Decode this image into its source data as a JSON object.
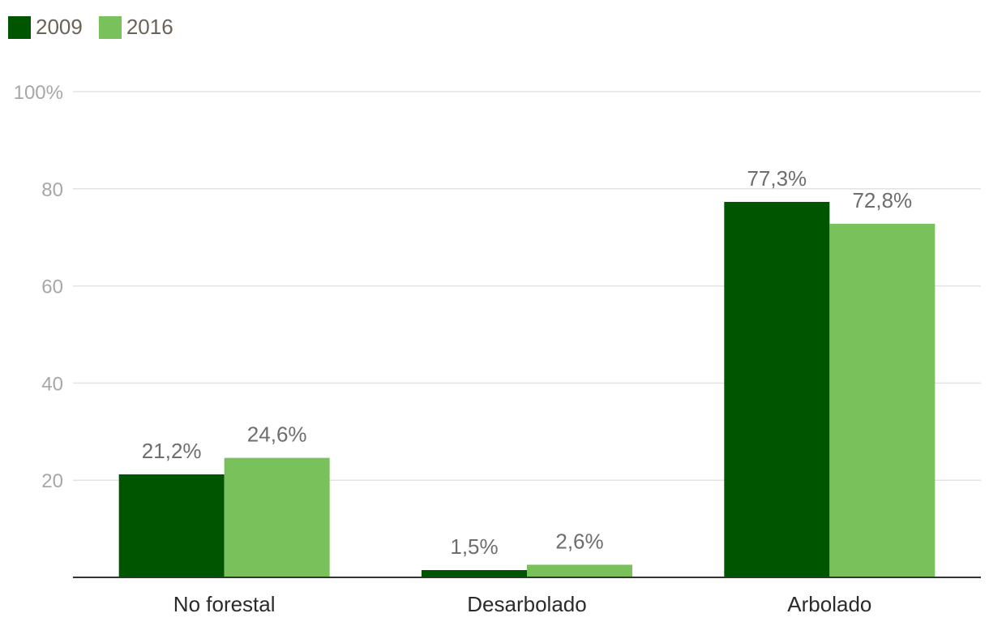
{
  "chart_data": {
    "type": "bar",
    "categories": [
      "No forestal",
      "Desarbolado",
      "Arbolado"
    ],
    "series": [
      {
        "name": "2009",
        "color": "#005500",
        "values": [
          21.2,
          1.5,
          77.3
        ],
        "labels": [
          "21,2%",
          "1,5%",
          "77,3%"
        ]
      },
      {
        "name": "2016",
        "color": "#79c15a",
        "values": [
          24.6,
          2.6,
          72.8
        ],
        "labels": [
          "24,6%",
          "2,6%",
          "72,8%"
        ]
      }
    ],
    "yticks": [
      {
        "value": 20,
        "label": "20"
      },
      {
        "value": 40,
        "label": "40"
      },
      {
        "value": 60,
        "label": "60"
      },
      {
        "value": 80,
        "label": "80"
      },
      {
        "value": 100,
        "label": "100%"
      }
    ],
    "ylim": [
      0,
      100
    ],
    "grid": true,
    "legend_position": "top-left",
    "title": "",
    "xlabel": "",
    "ylabel": ""
  }
}
